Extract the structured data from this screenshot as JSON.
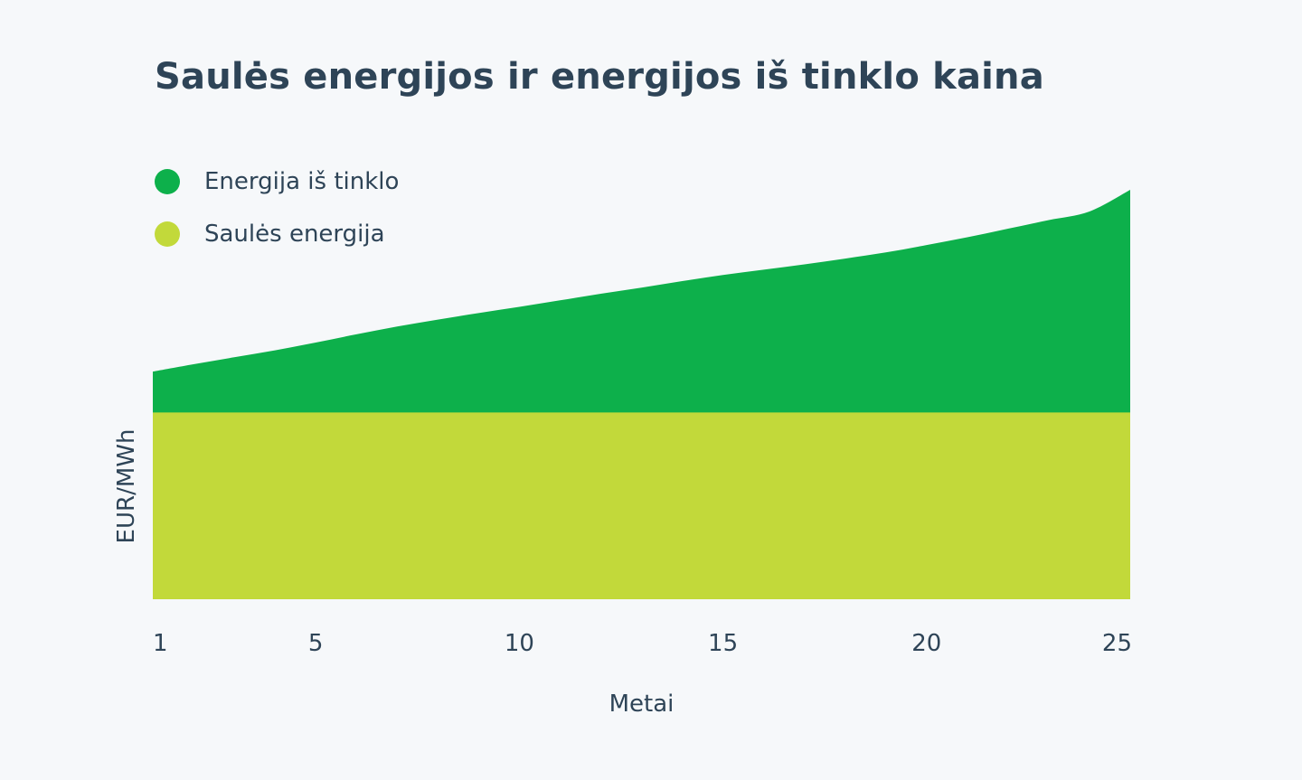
{
  "chart_data": {
    "type": "area",
    "title": "Saulės energijos ir energijos iš tinklo kaina",
    "xlabel": "Metai",
    "ylabel": "EUR/MWh",
    "x_ticks": [
      "1",
      "5",
      "10",
      "15",
      "20",
      "25"
    ],
    "xlim": [
      1,
      25
    ],
    "ylim": [
      0,
      100
    ],
    "grid": false,
    "legend_position": "top-left",
    "x": [
      1,
      2,
      3,
      4,
      5,
      6,
      7,
      8,
      9,
      10,
      11,
      12,
      13,
      14,
      15,
      16,
      17,
      18,
      19,
      20,
      21,
      22,
      23,
      24,
      25
    ],
    "series": [
      {
        "name": "Energija iš tinklo",
        "color": "#0db04b",
        "values": [
          55.6,
          57.4,
          59.1,
          60.8,
          62.7,
          64.7,
          66.6,
          68.3,
          69.9,
          71.4,
          73.0,
          74.6,
          76.1,
          77.7,
          79.2,
          80.5,
          81.8,
          83.2,
          84.7,
          86.5,
          88.4,
          90.5,
          92.6,
          94.7,
          100.0
        ]
      },
      {
        "name": "Saulės energija",
        "color": "#c2d93a",
        "values": [
          45.6,
          45.6,
          45.6,
          45.6,
          45.6,
          45.6,
          45.6,
          45.6,
          45.6,
          45.6,
          45.6,
          45.6,
          45.6,
          45.6,
          45.6,
          45.6,
          45.6,
          45.6,
          45.6,
          45.6,
          45.6,
          45.6,
          45.6,
          45.6,
          45.6
        ]
      }
    ]
  }
}
